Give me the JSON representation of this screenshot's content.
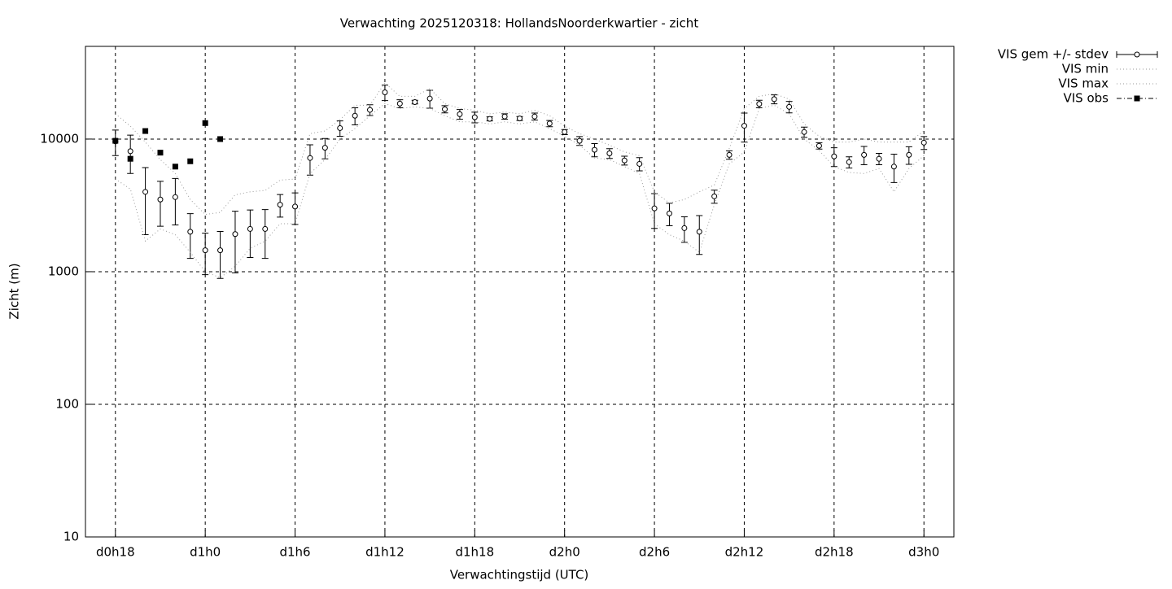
{
  "chart_data": {
    "type": "line",
    "title": "Verwachting 2025120318: HollandsNoorderkwartier - zicht",
    "xlabel": "Verwachtingstijd (UTC)",
    "ylabel": "Zicht (m)",
    "log_y": true,
    "grid": true,
    "legend": "outside-right",
    "xlim": [
      16,
      74
    ],
    "ylim": [
      10,
      50000
    ],
    "xticks": [
      {
        "value": 18,
        "label": "d0h18"
      },
      {
        "value": 24,
        "label": "d1h0"
      },
      {
        "value": 30,
        "label": "d1h6"
      },
      {
        "value": 36,
        "label": "d1h12"
      },
      {
        "value": 42,
        "label": "d1h18"
      },
      {
        "value": 48,
        "label": "d2h0"
      },
      {
        "value": 54,
        "label": "d2h6"
      },
      {
        "value": 60,
        "label": "d2h12"
      },
      {
        "value": 66,
        "label": "d2h18"
      },
      {
        "value": 72,
        "label": "d3h0"
      }
    ],
    "yticks": [
      10,
      100,
      1000,
      10000
    ],
    "x": [
      18,
      19,
      20,
      21,
      22,
      23,
      24,
      25,
      26,
      27,
      28,
      29,
      30,
      31,
      32,
      33,
      34,
      35,
      36,
      37,
      38,
      39,
      40,
      41,
      42,
      43,
      44,
      45,
      46,
      47,
      48,
      49,
      50,
      51,
      52,
      53,
      54,
      55,
      56,
      57,
      58,
      59,
      60,
      61,
      62,
      63,
      64,
      65,
      66,
      67,
      68,
      69,
      70,
      71,
      72
    ],
    "series": [
      {
        "name": "VIS gem +/- stdev",
        "color": "#000000",
        "style": "errorbars",
        "values": [
          9600,
          8100,
          4000,
          3500,
          3650,
          2000,
          1450,
          1450,
          1920,
          2100,
          2100,
          3200,
          3100,
          7200,
          8600,
          12100,
          15000,
          16600,
          22500,
          18500,
          19000,
          20200,
          16800,
          15400,
          14600,
          14200,
          14800,
          14300,
          14800,
          13100,
          11300,
          9700,
          8300,
          7800,
          6900,
          6500,
          3000,
          2750,
          2130,
          2000,
          3700,
          7600,
          12600,
          18400,
          20000,
          17500,
          11300,
          8900,
          7400,
          6700,
          7600,
          7100,
          6200,
          7600,
          9400
        ],
        "errors": [
          2100,
          2600,
          2100,
          1300,
          1400,
          740,
          500,
          560,
          940,
          820,
          840,
          620,
          830,
          1850,
          1500,
          1600,
          2200,
          1550,
          3000,
          1300,
          600,
          3100,
          1050,
          1300,
          1350,
          500,
          700,
          500,
          900,
          700,
          500,
          750,
          950,
          660,
          530,
          740,
          880,
          530,
          465,
          650,
          420,
          550,
          3100,
          1200,
          1550,
          1750,
          1000,
          500,
          1200,
          650,
          1200,
          700,
          1500,
          1150,
          1050
        ]
      },
      {
        "name": "VIS min",
        "color": "#999999",
        "style": "dotted",
        "values": [
          5000,
          4200,
          1700,
          2100,
          1900,
          1400,
          1000,
          900,
          1100,
          1500,
          1700,
          2300,
          2300,
          5500,
          7000,
          10000,
          12000,
          15000,
          18500,
          17000,
          17500,
          17000,
          15000,
          13500,
          13500,
          13000,
          13500,
          13000,
          13500,
          12000,
          10500,
          9000,
          7200,
          7000,
          6200,
          5500,
          2300,
          1900,
          1700,
          1400,
          3200,
          6500,
          8000,
          17000,
          18000,
          15500,
          10000,
          8200,
          6200,
          5600,
          5500,
          6000,
          4000,
          6000,
          7500
        ]
      },
      {
        "name": "VIS max",
        "color": "#999999",
        "style": "dotted",
        "values": [
          15500,
          12500,
          9500,
          7000,
          5500,
          3500,
          2700,
          2800,
          3800,
          4000,
          4100,
          4900,
          5000,
          11000,
          11500,
          14000,
          18000,
          18000,
          26500,
          21000,
          21000,
          24000,
          18500,
          17000,
          16500,
          15500,
          16000,
          15500,
          16500,
          15000,
          12500,
          11000,
          10000,
          9000,
          8000,
          7500,
          4000,
          3300,
          3500,
          4000,
          4500,
          8500,
          17000,
          21000,
          22000,
          20000,
          13000,
          10500,
          9500,
          9500,
          10000,
          9500,
          9500,
          9500,
          11500
        ]
      },
      {
        "name": "VIS obs",
        "color": "#000000",
        "style": "points",
        "x": [
          18,
          19,
          20,
          21,
          22,
          23,
          24,
          25
        ],
        "values": [
          9700,
          7100,
          11500,
          7900,
          6200,
          6800,
          13200,
          10000
        ]
      }
    ]
  }
}
